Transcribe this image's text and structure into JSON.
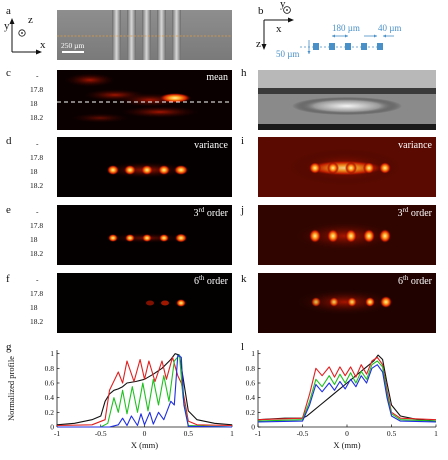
{
  "panels": {
    "a": "a",
    "b": "b",
    "c": "c",
    "d": "d",
    "e": "e",
    "f": "f",
    "g": "g",
    "h": "h",
    "i": "i",
    "j": "j",
    "k": "k",
    "l": "l"
  },
  "panel_a": {
    "axis_y": "y",
    "axis_z": "z",
    "axis_x": "x",
    "scalebar": "250 µm"
  },
  "panel_b": {
    "axis_y": "y",
    "axis_z": "z",
    "axis_x": "x",
    "spacing": "180 µm",
    "width": "40 µm",
    "depth": "50 µm"
  },
  "image_labels": {
    "c": "mean",
    "d": "variance",
    "e_base": "3",
    "e_sup": "rd",
    "e_rest": " order",
    "f_base": "6",
    "f_sup": "th",
    "f_rest": " order",
    "i": "variance",
    "j_base": "3",
    "j_sup": "rd",
    "j_rest": " order",
    "k_base": "6",
    "k_sup": "th",
    "k_rest": " order"
  },
  "left_ticks": [
    "17.8",
    "18",
    "18.2"
  ],
  "left_ticks_dash": "-",
  "chart_data": [
    {
      "panel": "g",
      "type": "line",
      "xlabel": "X (mm)",
      "ylabel": "Normalized profile",
      "xlim": [
        -1,
        1
      ],
      "ylim": [
        0,
        1.05
      ],
      "xticks": [
        "-1",
        "-0.5",
        "0",
        "0.5",
        "1"
      ],
      "yticks": [
        "0",
        "0.2",
        "0.4",
        "0.6",
        "0.8",
        "1"
      ],
      "series": [
        {
          "color": "#111111",
          "x": [
            -1,
            -0.8,
            -0.6,
            -0.5,
            -0.45,
            -0.4,
            -0.35,
            -0.3,
            -0.25,
            -0.2,
            -0.1,
            0,
            0.1,
            0.2,
            0.3,
            0.35,
            0.4,
            0.45,
            0.5,
            0.6,
            0.8,
            1
          ],
          "y": [
            0.03,
            0.05,
            0.1,
            0.15,
            0.35,
            0.45,
            0.5,
            0.52,
            0.55,
            0.6,
            0.62,
            0.65,
            0.72,
            0.8,
            0.92,
            1.0,
            0.98,
            0.6,
            0.22,
            0.1,
            0.05,
            0.03
          ]
        },
        {
          "color": "#e02020",
          "x": [
            -1,
            -0.6,
            -0.45,
            -0.4,
            -0.3,
            -0.25,
            -0.2,
            -0.12,
            -0.05,
            0.0,
            0.05,
            0.12,
            0.2,
            0.25,
            0.32,
            0.38,
            0.42,
            0.46,
            0.5,
            0.6,
            1
          ],
          "y": [
            0.02,
            0.03,
            0.1,
            0.5,
            0.75,
            0.6,
            0.9,
            0.62,
            0.92,
            0.65,
            0.9,
            0.62,
            0.9,
            0.65,
            0.95,
            0.7,
            0.6,
            0.35,
            0.08,
            0.03,
            0.02
          ]
        },
        {
          "color": "#20c020",
          "x": [
            -1,
            -0.5,
            -0.42,
            -0.35,
            -0.3,
            -0.25,
            -0.2,
            -0.14,
            -0.08,
            -0.02,
            0.04,
            0.1,
            0.16,
            0.22,
            0.28,
            0.34,
            0.4,
            0.44,
            0.5,
            1
          ],
          "y": [
            0.0,
            0.0,
            0.05,
            0.4,
            0.2,
            0.5,
            0.18,
            0.55,
            0.2,
            0.6,
            0.22,
            0.65,
            0.3,
            0.7,
            0.35,
            0.9,
            0.98,
            0.4,
            0.02,
            0.0
          ]
        },
        {
          "color": "#1e2ee0",
          "x": [
            -1,
            -0.4,
            -0.3,
            -0.25,
            -0.2,
            -0.15,
            -0.08,
            -0.04,
            0.0,
            0.06,
            0.1,
            0.16,
            0.22,
            0.3,
            0.34,
            0.38,
            0.42,
            0.45,
            0.5,
            1
          ],
          "y": [
            0.0,
            0.0,
            0.03,
            0.12,
            0.02,
            0.15,
            0.02,
            0.18,
            0.03,
            0.2,
            0.04,
            0.2,
            0.1,
            0.35,
            0.3,
            0.98,
            0.95,
            0.3,
            0.01,
            0.0
          ]
        }
      ]
    },
    {
      "panel": "l",
      "type": "line",
      "xlabel": "X (mm)",
      "ylabel": "",
      "xlim": [
        -1,
        1
      ],
      "ylim": [
        0,
        1.05
      ],
      "xticks": [
        "-1",
        "-0.5",
        "0",
        "0.5",
        "1"
      ],
      "yticks": [
        "0",
        "0.2",
        "0.4",
        "0.6",
        "0.8",
        "1"
      ],
      "series": [
        {
          "color": "#111111",
          "x": [
            -1,
            -0.7,
            -0.5,
            -0.45,
            -0.4,
            -0.3,
            -0.2,
            -0.1,
            0,
            0.1,
            0.2,
            0.3,
            0.35,
            0.4,
            0.45,
            0.5,
            0.6,
            0.8,
            1
          ],
          "y": [
            0.1,
            0.12,
            0.12,
            0.15,
            0.2,
            0.3,
            0.4,
            0.5,
            0.6,
            0.7,
            0.8,
            0.9,
            0.98,
            0.92,
            0.6,
            0.3,
            0.15,
            0.1,
            0.08
          ]
        },
        {
          "color": "#e02020",
          "x": [
            -1,
            -0.5,
            -0.42,
            -0.35,
            -0.28,
            -0.2,
            -0.14,
            -0.08,
            -0.02,
            0.04,
            0.1,
            0.16,
            0.22,
            0.28,
            0.34,
            0.4,
            0.45,
            0.5,
            0.6,
            1
          ],
          "y": [
            0.1,
            0.12,
            0.45,
            0.8,
            0.7,
            0.82,
            0.68,
            0.82,
            0.7,
            0.82,
            0.68,
            0.85,
            0.72,
            0.9,
            0.95,
            0.85,
            0.5,
            0.2,
            0.12,
            0.1
          ]
        },
        {
          "color": "#20c020",
          "x": [
            -1,
            -0.5,
            -0.42,
            -0.35,
            -0.28,
            -0.2,
            -0.14,
            -0.08,
            -0.02,
            0.04,
            0.1,
            0.16,
            0.22,
            0.28,
            0.34,
            0.4,
            0.45,
            0.5,
            0.6,
            1
          ],
          "y": [
            0.08,
            0.1,
            0.35,
            0.65,
            0.55,
            0.7,
            0.58,
            0.72,
            0.6,
            0.74,
            0.6,
            0.76,
            0.65,
            0.85,
            0.9,
            0.82,
            0.45,
            0.18,
            0.1,
            0.08
          ]
        },
        {
          "color": "#1e2ee0",
          "x": [
            -1,
            -0.5,
            -0.42,
            -0.35,
            -0.28,
            -0.2,
            -0.14,
            -0.08,
            -0.02,
            0.04,
            0.1,
            0.16,
            0.22,
            0.28,
            0.34,
            0.4,
            0.45,
            0.5,
            0.6,
            1
          ],
          "y": [
            0.07,
            0.08,
            0.3,
            0.58,
            0.48,
            0.6,
            0.5,
            0.62,
            0.52,
            0.65,
            0.55,
            0.7,
            0.6,
            0.8,
            0.85,
            0.75,
            0.4,
            0.15,
            0.08,
            0.07
          ]
        }
      ]
    }
  ]
}
